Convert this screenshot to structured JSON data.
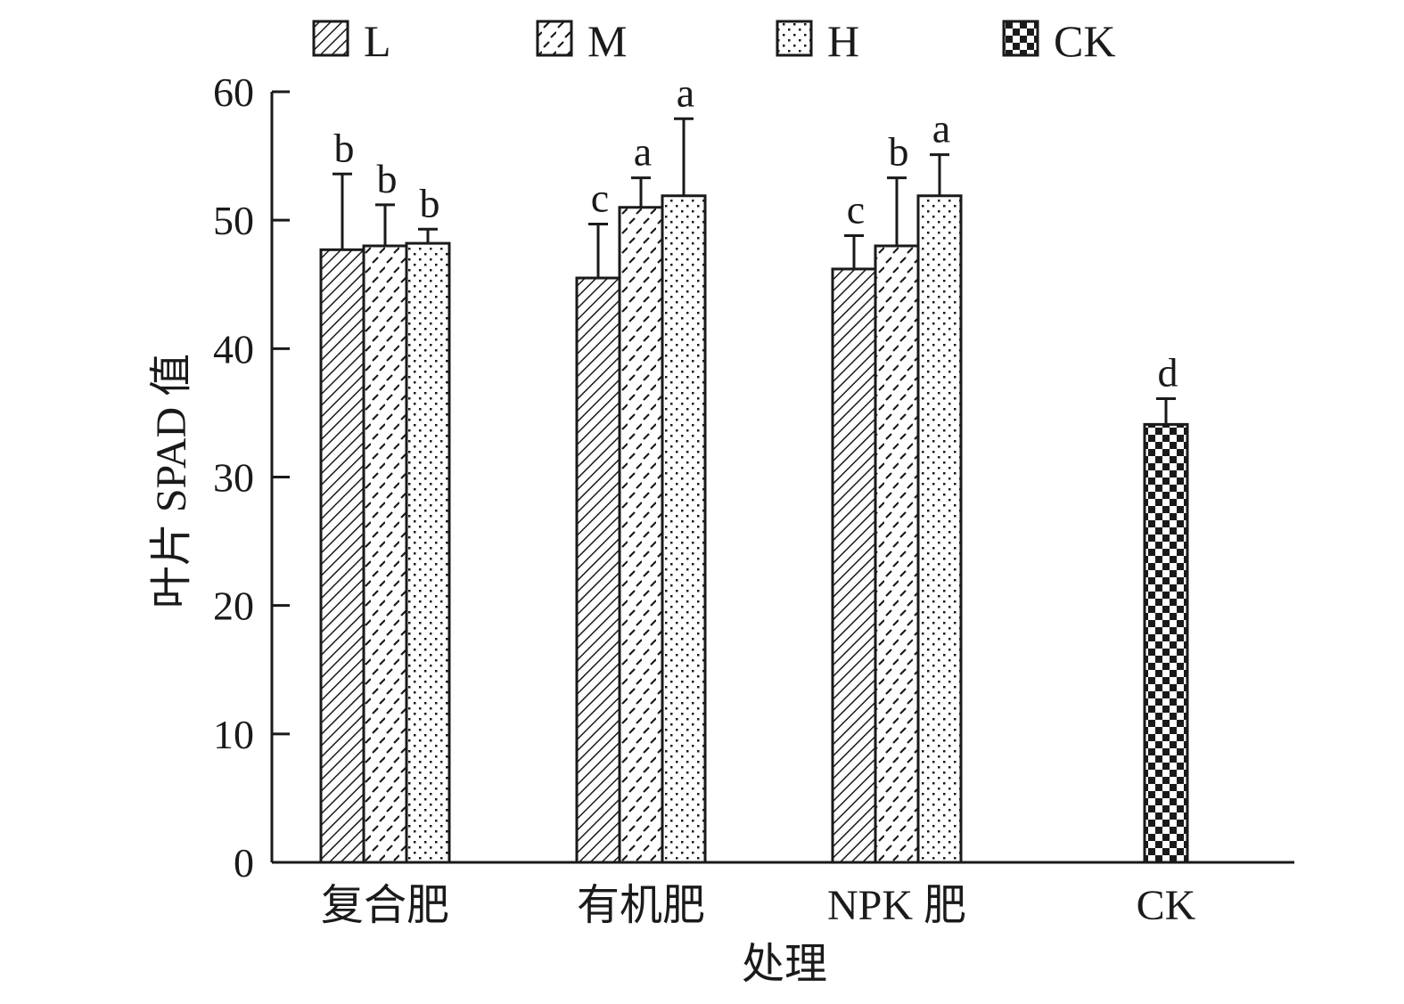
{
  "chart_data": {
    "type": "bar",
    "title": "",
    "xlabel": "处理",
    "ylabel": "叶片 SPAD 值",
    "ylim": [
      0,
      60
    ],
    "yticks": [
      0,
      10,
      20,
      30,
      40,
      50,
      60
    ],
    "categories": [
      "复合肥",
      "有机肥",
      "NPK 肥",
      "CK"
    ],
    "legend_position": "top",
    "series": [
      {
        "name": "L",
        "pattern": "diagonal-hatch",
        "values": [
          47.7,
          45.5,
          46.2,
          null
        ],
        "errors": [
          5.9,
          4.2,
          2.6,
          null
        ],
        "labels": [
          "b",
          "c",
          "c",
          null
        ]
      },
      {
        "name": "M",
        "pattern": "dashed-diagonal",
        "values": [
          48.0,
          51.0,
          48.0,
          null
        ],
        "errors": [
          3.2,
          2.3,
          5.3,
          null
        ],
        "labels": [
          "b",
          "a",
          "b",
          null
        ]
      },
      {
        "name": "H",
        "pattern": "dots",
        "values": [
          48.2,
          51.9,
          51.9,
          null
        ],
        "errors": [
          1.1,
          6.0,
          3.2,
          null
        ],
        "labels": [
          "b",
          "a",
          "a",
          null
        ]
      },
      {
        "name": "CK",
        "pattern": "checker",
        "values": [
          null,
          null,
          null,
          34.1
        ],
        "errors": [
          null,
          null,
          null,
          2.0
        ],
        "labels": [
          null,
          null,
          null,
          "d"
        ]
      }
    ],
    "colors": {
      "ink": "#1a1a1a",
      "background": "#ffffff"
    }
  }
}
